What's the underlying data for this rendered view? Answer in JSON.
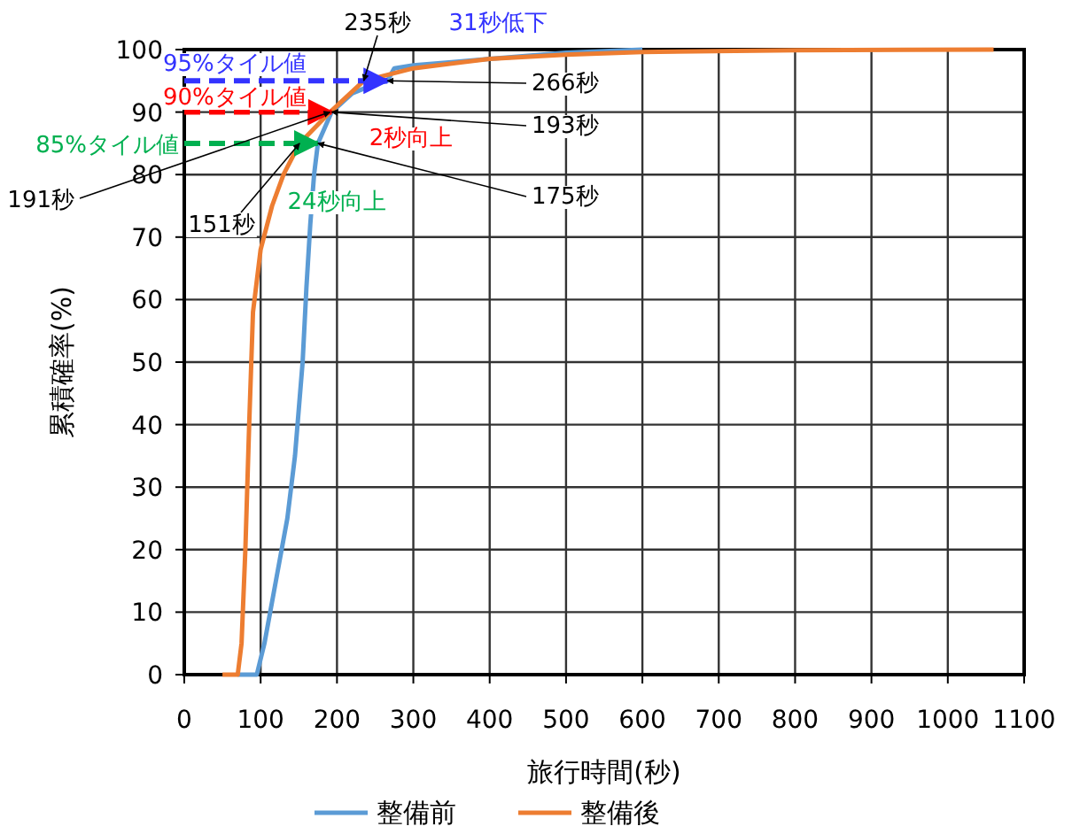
{
  "chart_data": {
    "type": "line",
    "xlabel": "旅行時間(秒)",
    "ylabel": "累積確率(%)",
    "xlim": [
      0,
      1100
    ],
    "xticks": [
      0,
      100,
      200,
      300,
      400,
      500,
      600,
      700,
      800,
      900,
      1000,
      1100
    ],
    "ylim": [
      0,
      100
    ],
    "yticks": [
      0,
      10,
      20,
      30,
      40,
      50,
      60,
      70,
      80,
      90,
      100
    ],
    "grid": true,
    "legend": "bottom",
    "marker": "none",
    "line_style": "solid",
    "series": [
      {
        "name": "整備前",
        "color": "#5b9bd5",
        "x": [
          70,
          95,
          105,
          120,
          135,
          145,
          155,
          160,
          165,
          170,
          175,
          193,
          220,
          250,
          266,
          275,
          300,
          350,
          400,
          500,
          600
        ],
        "values": [
          0,
          0,
          5,
          15,
          25,
          35,
          50,
          62,
          72,
          80,
          85,
          90,
          93,
          94.5,
          95,
          97,
          97.5,
          98,
          98.5,
          99.5,
          100
        ]
      },
      {
        "name": "整備後",
        "color": "#ed7d31",
        "x": [
          50,
          70,
          75,
          80,
          85,
          90,
          100,
          115,
          130,
          151,
          191,
          235,
          300,
          400,
          500,
          600,
          800,
          1060
        ],
        "values": [
          0,
          0,
          5,
          20,
          40,
          58,
          68,
          75,
          80,
          85,
          90,
          95,
          97,
          98.5,
          99.2,
          99.6,
          99.9,
          100
        ]
      }
    ],
    "ref_lines": [
      {
        "axis": "y",
        "value": 95,
        "label": "95%タイル値",
        "color": "#3333ff",
        "line_style": "dashed"
      },
      {
        "axis": "y",
        "value": 90,
        "label": "90%タイル値",
        "color": "#ff0000",
        "line_style": "dashed"
      },
      {
        "axis": "y",
        "value": 85,
        "label": "85%タイル値",
        "color": "#00b050",
        "line_style": "dashed"
      }
    ],
    "annotations": [
      {
        "text": "235秒",
        "x": 235,
        "y": 95
      },
      "31秒低下",
      {
        "text": "266秒",
        "x": 266,
        "y": 95
      },
      {
        "text": "193秒",
        "x": 193,
        "y": 90
      },
      {
        "text": "175秒",
        "x": 175,
        "y": 85
      },
      {
        "text": "191秒",
        "x": 191,
        "y": 90
      },
      {
        "text": "151秒",
        "x": 151,
        "y": 85
      },
      "2秒向上",
      "24秒向上"
    ]
  }
}
